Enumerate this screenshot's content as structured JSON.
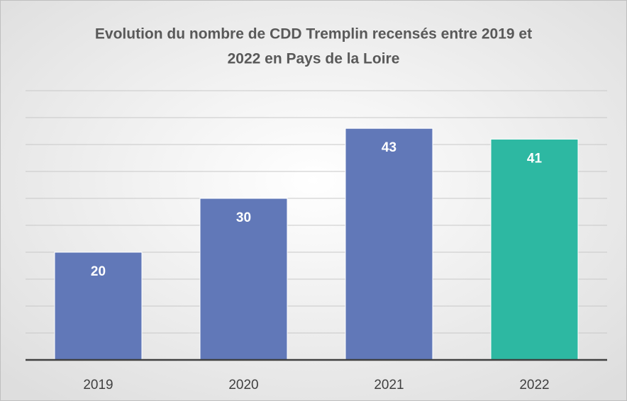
{
  "chart_data": {
    "type": "bar",
    "title": [
      "Evolution du nombre de CDD Tremplin recensés entre 2019 et",
      "2022 en Pays de la Loire"
    ],
    "categories": [
      "2019",
      "2020",
      "2021",
      "2022"
    ],
    "values": [
      20,
      30,
      43,
      41
    ],
    "colors": [
      "#6178b8",
      "#6178b8",
      "#6178b8",
      "#2db8a2"
    ],
    "ylim": [
      0,
      50
    ],
    "yticks": [
      0,
      5,
      10,
      15,
      20,
      25,
      30,
      35,
      40,
      45,
      50
    ],
    "grid": true
  }
}
